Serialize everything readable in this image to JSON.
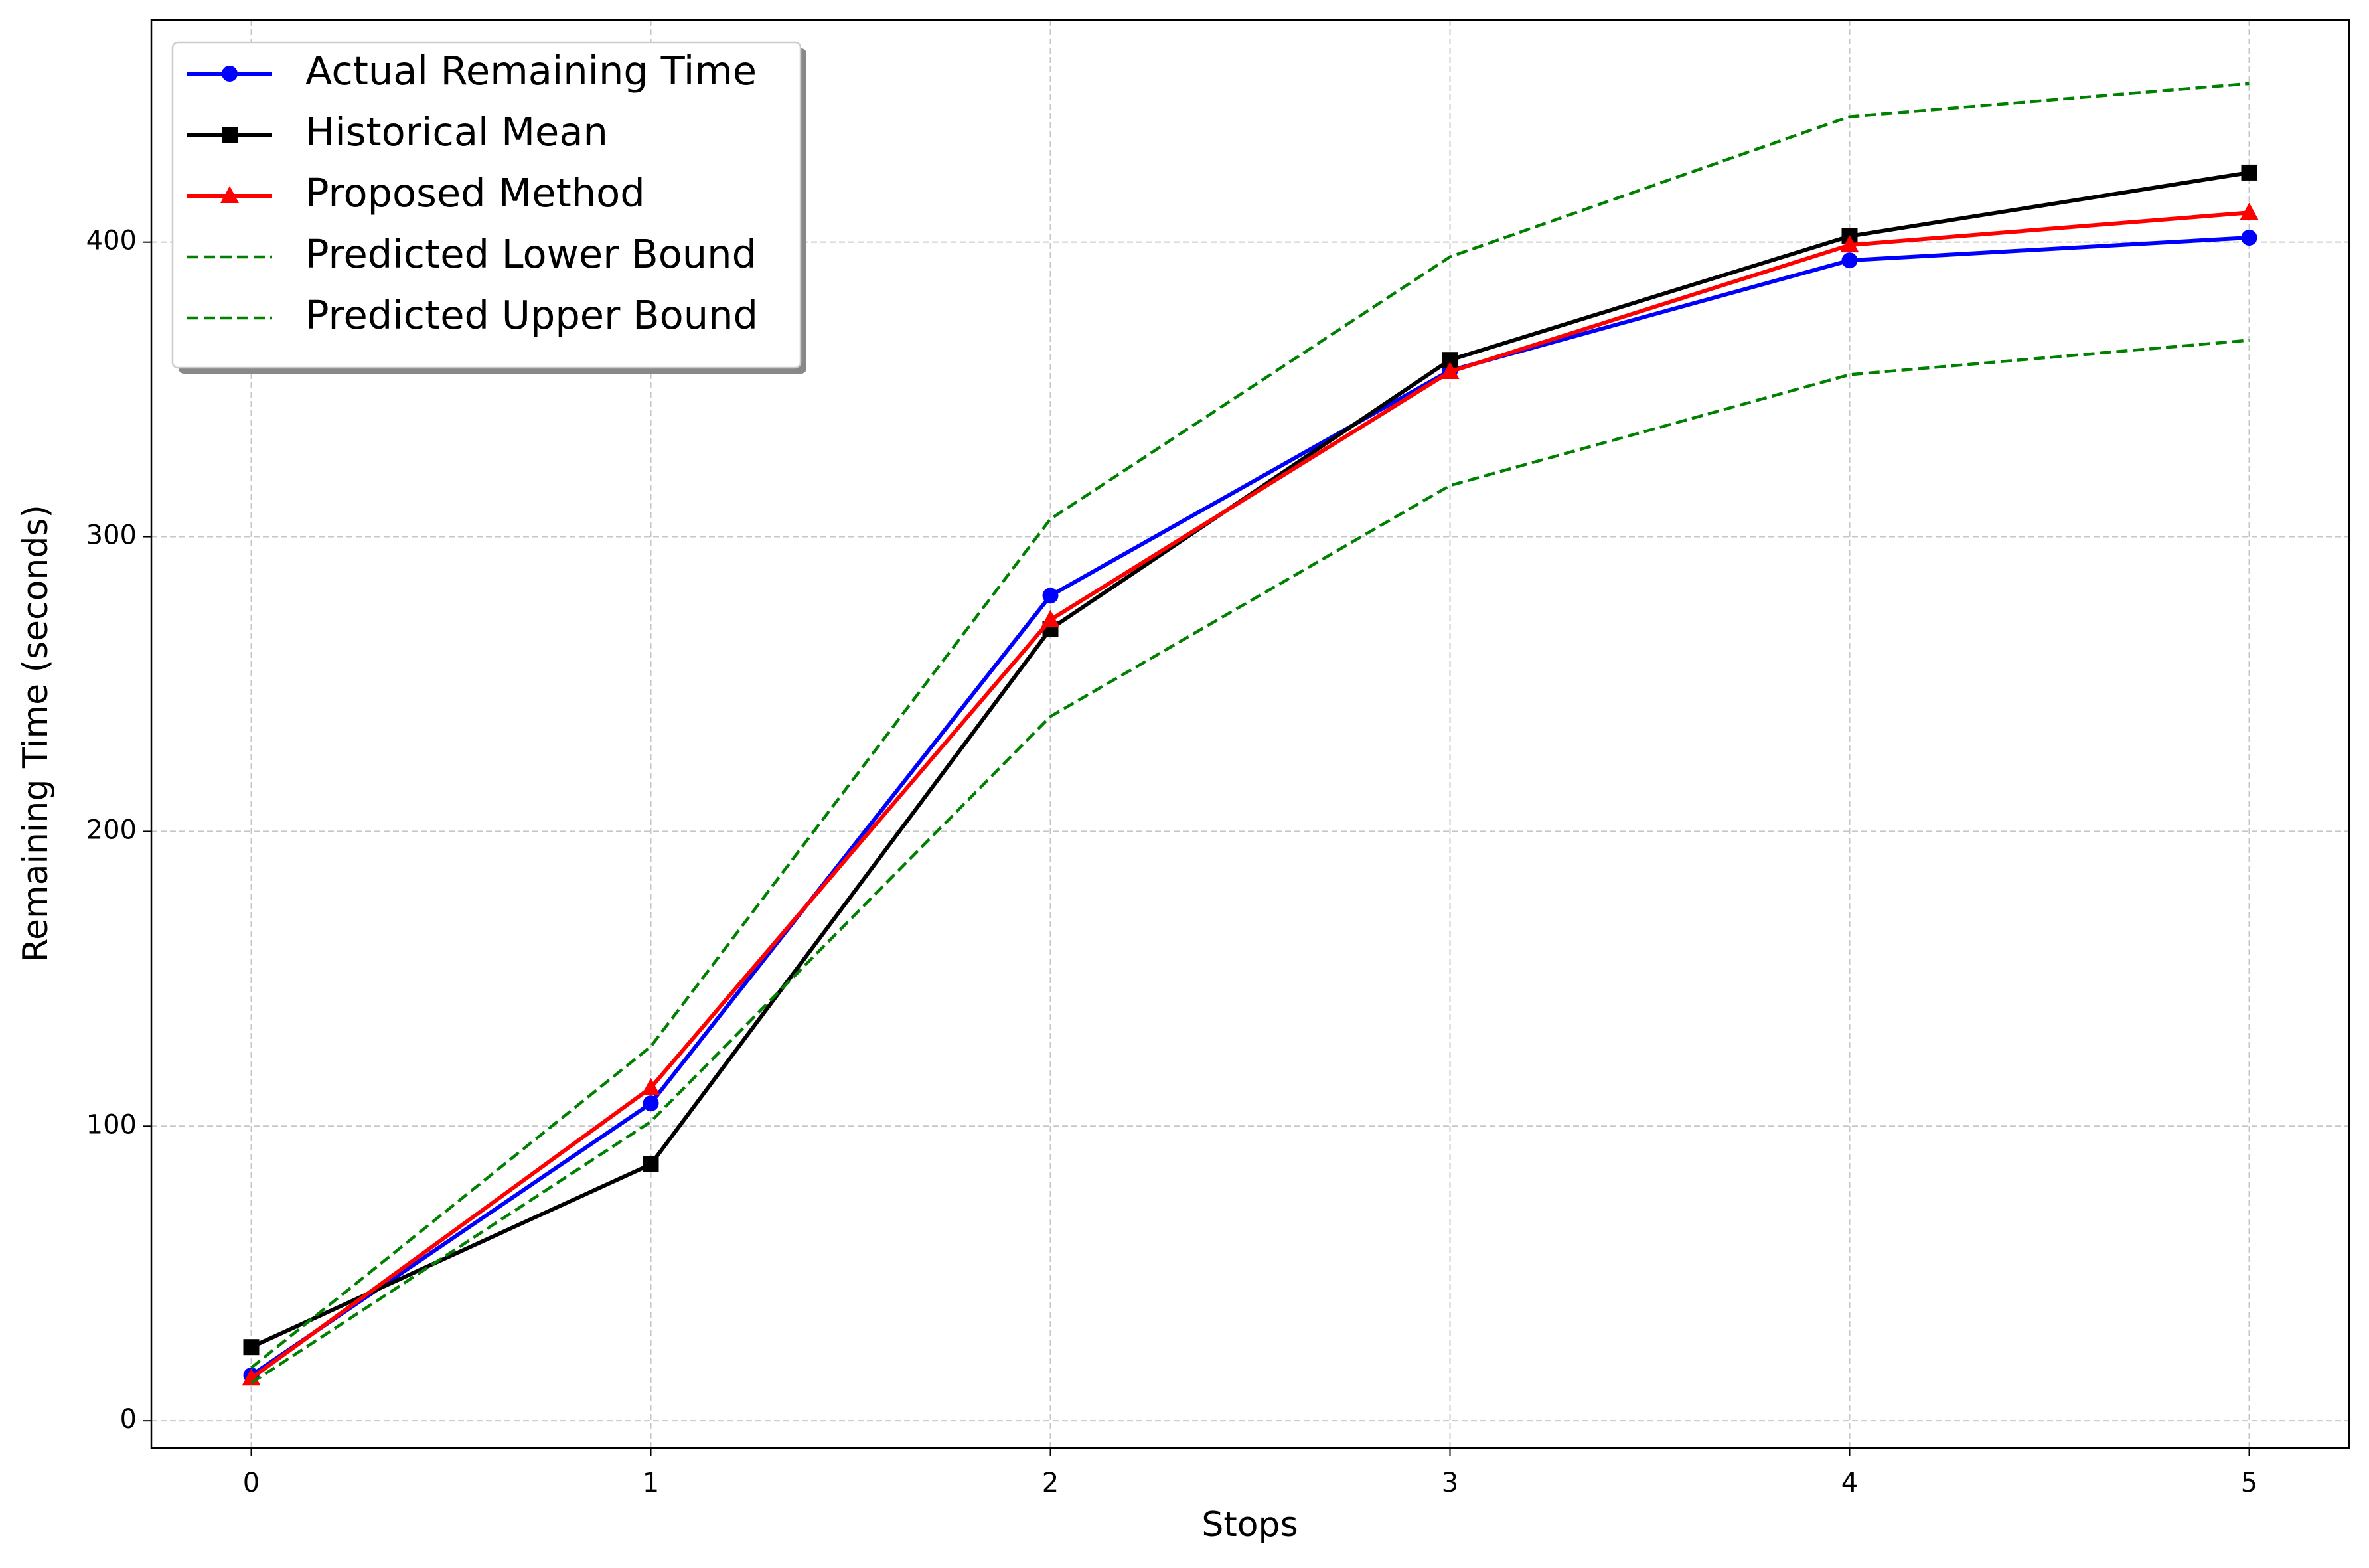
{
  "chart_data": {
    "type": "line",
    "x_label": "Stops",
    "y_label": "Remaining Time (seconds)",
    "x": [
      0,
      1,
      2,
      3,
      4,
      5
    ],
    "series": [
      {
        "name": "Actual Remaining Time",
        "color": "#0000ff",
        "marker": "circle",
        "linestyle": "solid",
        "values": [
          15.4,
          107.7,
          280,
          356.4,
          393.8,
          401.5
        ]
      },
      {
        "name": "Historical Mean",
        "color": "#000000",
        "marker": "square",
        "linestyle": "solid",
        "values": [
          25,
          87,
          268.7,
          360,
          402,
          423.6
        ]
      },
      {
        "name": "Proposed Method",
        "color": "#ff0000",
        "marker": "triangle",
        "linestyle": "solid",
        "values": [
          14.4,
          113,
          271.8,
          356,
          399,
          410
        ]
      },
      {
        "name": "Predicted Lower Bound",
        "color": "#008000",
        "marker": "none",
        "linestyle": "dashed",
        "values": [
          12.8,
          101.5,
          239,
          317.4,
          355,
          366.7
        ]
      },
      {
        "name": "Predicted Upper Bound",
        "color": "#008000",
        "marker": "none",
        "linestyle": "dashed",
        "values": [
          18,
          127,
          306,
          395,
          442.6,
          453.8
        ]
      }
    ],
    "xlim": [
      -0.25,
      5.25
    ],
    "ylim": [
      -9.2,
      475.4
    ],
    "xticks": [
      0,
      1,
      2,
      3,
      4,
      5
    ],
    "yticks": [
      0,
      100,
      200,
      300,
      400
    ],
    "grid": true,
    "legend": "upper-left"
  }
}
